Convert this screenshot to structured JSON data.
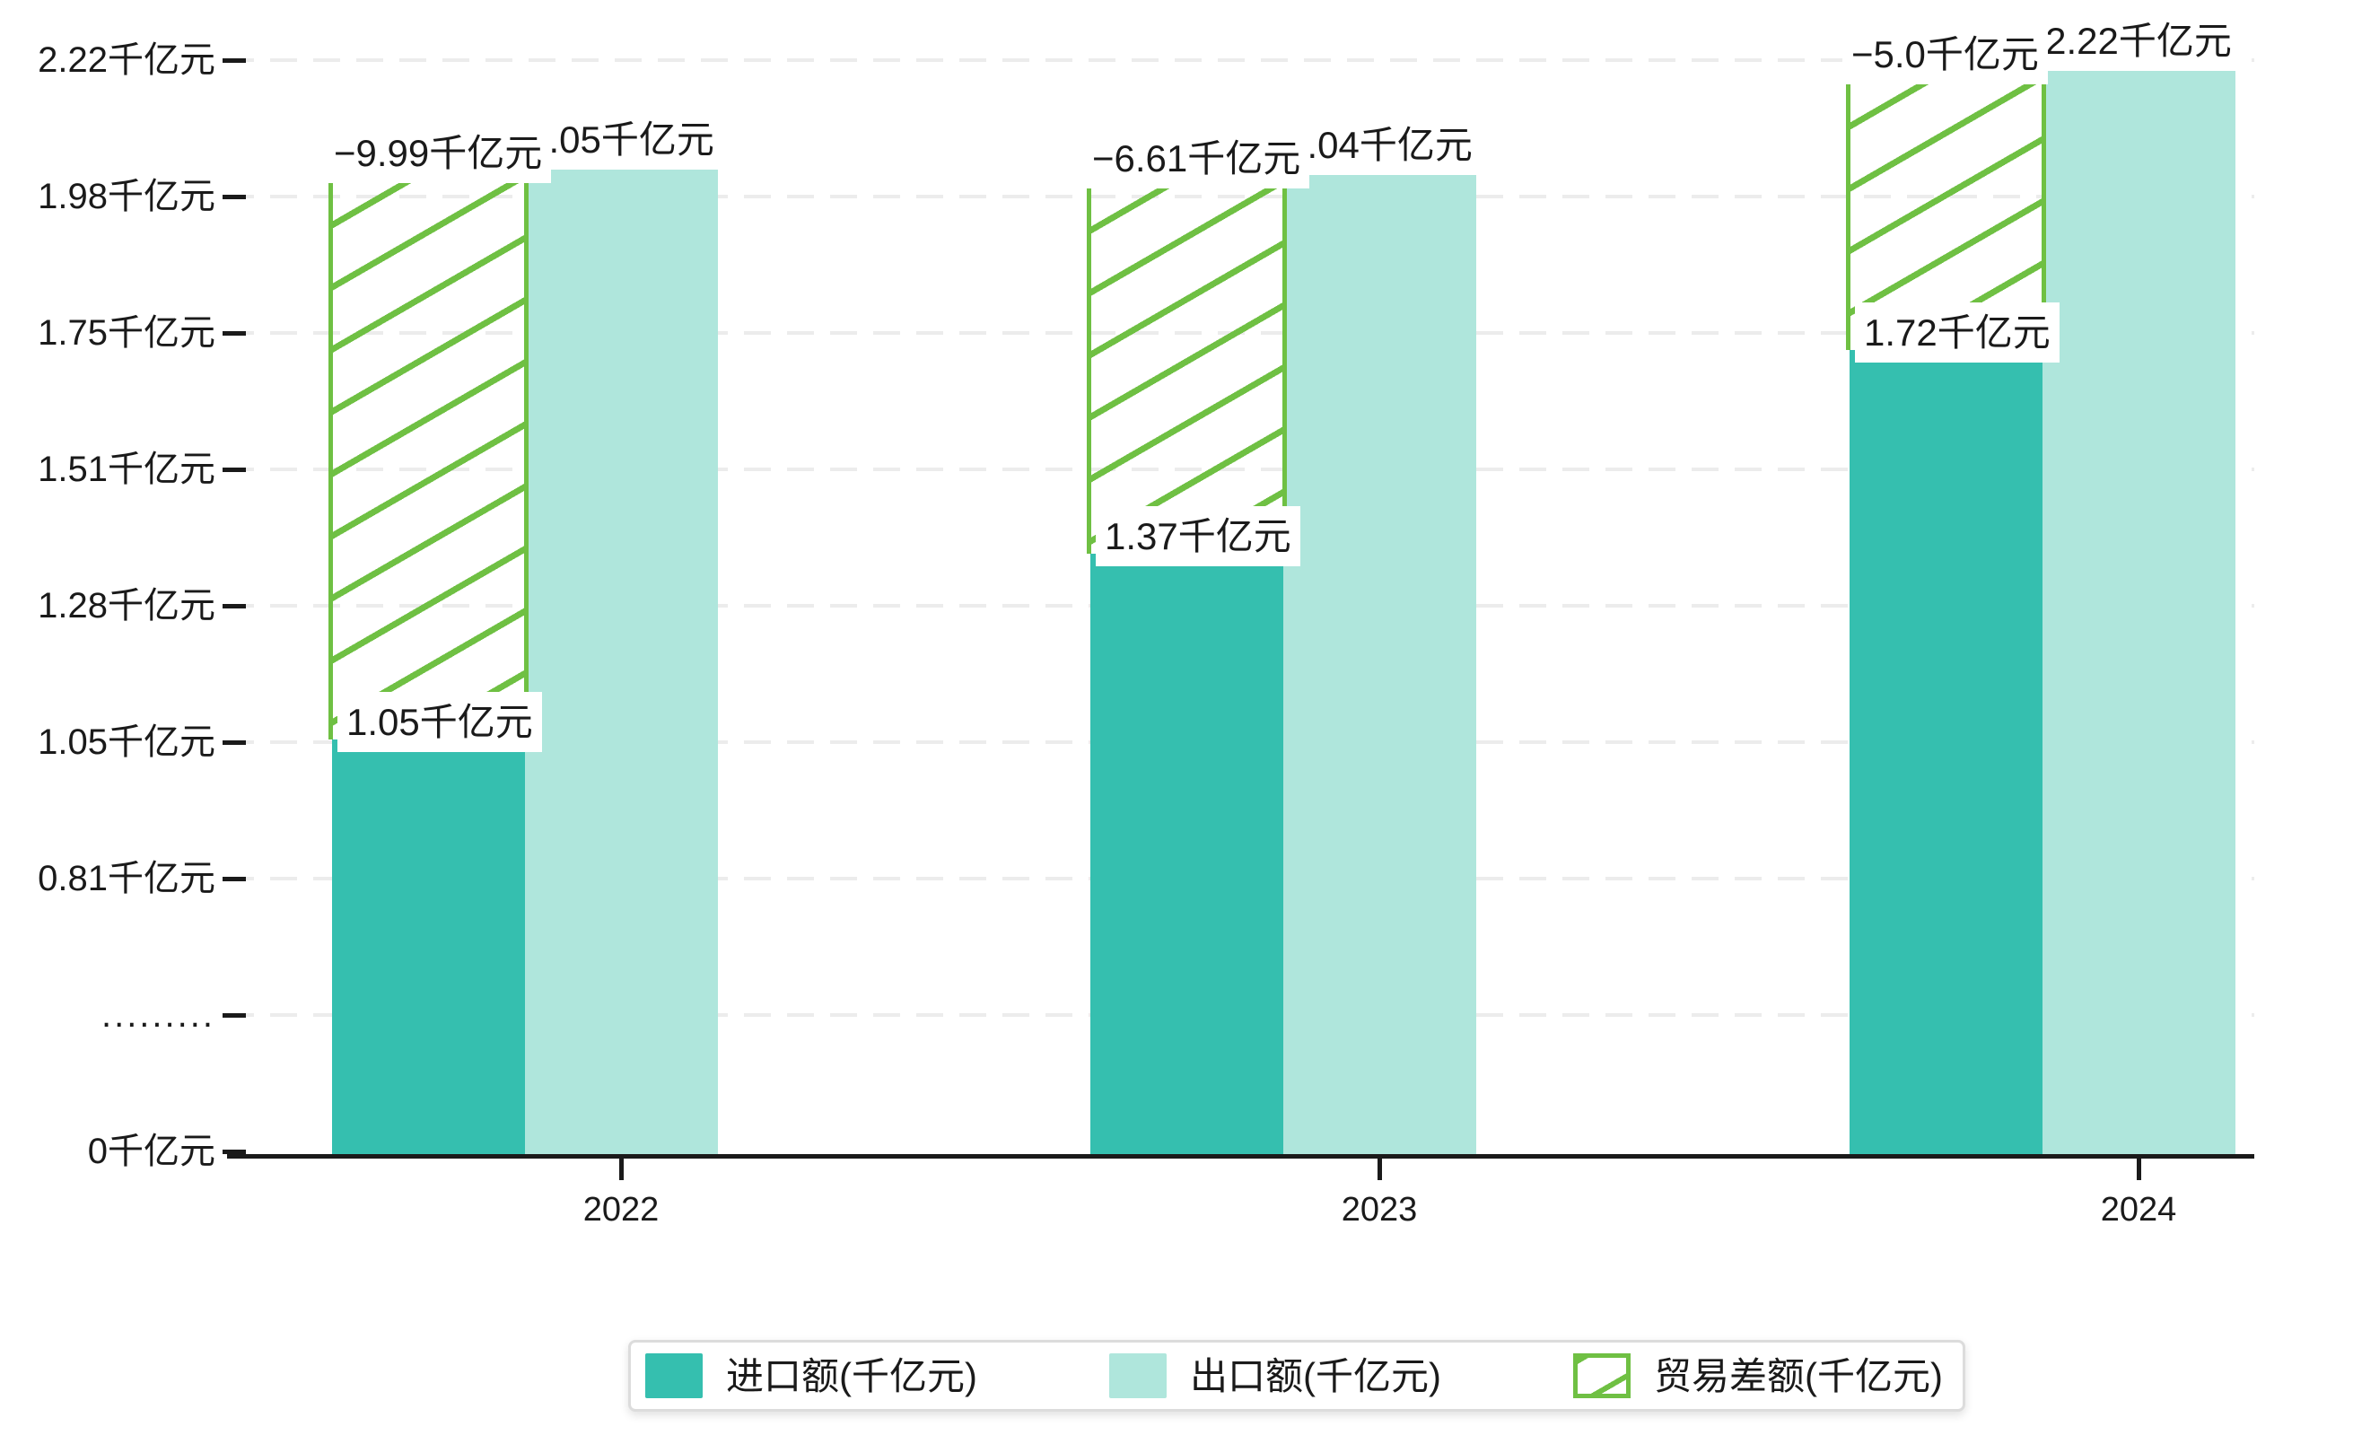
{
  "chart_data": {
    "type": "bar",
    "title": "",
    "categories": [
      "2022",
      "2023",
      "2024"
    ],
    "unit": "千亿元",
    "series": [
      {
        "name": "进口额(千亿元)",
        "role": "import",
        "values": [
          1.05,
          1.37,
          1.72
        ],
        "data_labels": [
          "1.05千亿元",
          "1.37千亿元",
          "1.72千亿元"
        ],
        "color": "#35BFAF",
        "style": "solid"
      },
      {
        "name": "出口额(千亿元)",
        "role": "export",
        "values": [
          2.05,
          2.04,
          2.22
        ],
        "data_labels": [
          "2.05千亿元",
          "2.04千亿元",
          "2.22千亿元"
        ],
        "color": "#AFE6DC",
        "style": "solid"
      },
      {
        "name": "贸易差额(千亿元)",
        "role": "trade-balance",
        "values": [
          -9.99,
          -6.61,
          -5.0
        ],
        "data_labels": [
          "−9.99千亿元",
          "−6.61千亿元",
          "−5.0千亿元"
        ],
        "color": "#6FC043",
        "style": "diagonal-hatch",
        "bar_spans_between": "import-top-and-export-top"
      }
    ],
    "y_axis": {
      "tick_labels": [
        "2.22千亿元",
        "1.98千亿元",
        "1.75千亿元",
        "1.51千亿元",
        "1.28千亿元",
        "1.05千亿元",
        "0.81千亿元",
        ".........",
        "0千亿元"
      ],
      "tick_values": [
        2.22,
        1.98,
        1.75,
        1.51,
        1.28,
        1.05,
        0.81,
        null,
        0
      ],
      "has_axis_break": true,
      "grid": "dashed-horizontal"
    },
    "x_axis": {
      "tick_labels": [
        "2022",
        "2023",
        "2024"
      ]
    },
    "legend": {
      "position": "bottom",
      "entries": [
        {
          "label": "进口额(千亿元)",
          "swatch": "solid-teal"
        },
        {
          "label": "出口额(千亿元)",
          "swatch": "solid-light-teal"
        },
        {
          "label": "贸易差额(千亿元)",
          "swatch": "green-diagonal-hatch"
        }
      ]
    }
  },
  "colors": {
    "import_bar": "#35BFAF",
    "export_bar": "#AFE6DC",
    "balance_hatch": "#6FC043",
    "gridline": "#ECECEC",
    "axis": "#1A1A1A",
    "text": "#1A1A1A",
    "label_background": "#FFFFFF",
    "legend_border": "#DCDCDC",
    "background": "#FFFFFF"
  }
}
